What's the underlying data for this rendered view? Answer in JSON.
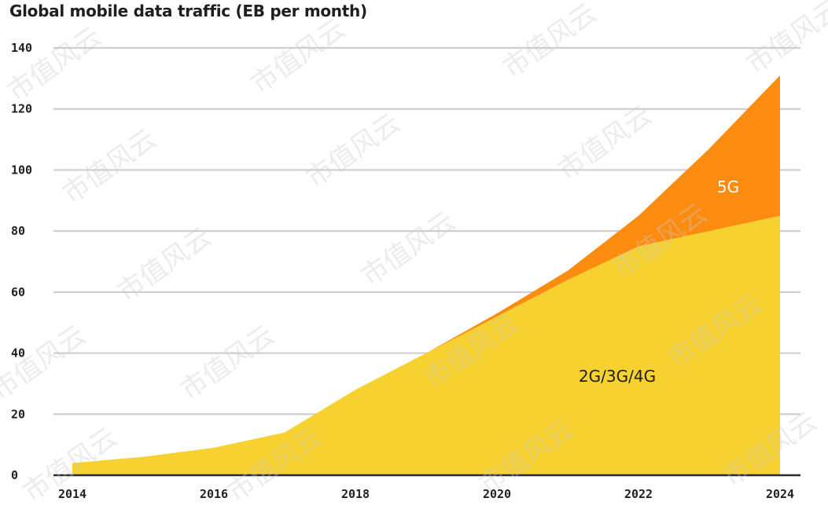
{
  "chart_data": {
    "type": "area",
    "stacked": true,
    "title": "Global mobile data traffic (EB per month)",
    "xlabel": "",
    "ylabel": "",
    "x": [
      2014,
      2015,
      2016,
      2017,
      2018,
      2019,
      2020,
      2021,
      2022,
      2023,
      2024
    ],
    "xticks": [
      "2014",
      "2016",
      "2018",
      "2020",
      "2022",
      "2024"
    ],
    "yticks": [
      "0",
      "20",
      "40",
      "60",
      "80",
      "100",
      "120",
      "140"
    ],
    "xlim": [
      2014,
      2024
    ],
    "ylim": [
      0,
      140
    ],
    "grid": true,
    "series": [
      {
        "name": "2G/3G/4G",
        "color": "#f7d12f",
        "values": [
          4,
          6,
          9,
          14,
          28,
          40,
          52,
          64,
          75,
          80,
          85
        ]
      },
      {
        "name": "5G",
        "color": "#fb8c0f",
        "values": [
          0,
          0,
          0,
          0,
          0,
          0,
          1,
          3,
          10,
          27,
          46
        ]
      }
    ]
  },
  "watermark": "市值风云"
}
